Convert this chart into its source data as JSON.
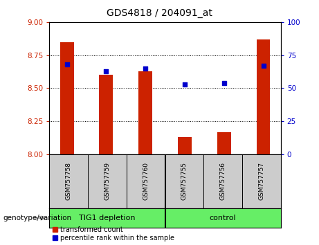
{
  "title": "GDS4818 / 204091_at",
  "samples": [
    "GSM757758",
    "GSM757759",
    "GSM757760",
    "GSM757755",
    "GSM757756",
    "GSM757757"
  ],
  "transformed_count": [
    8.85,
    8.6,
    8.63,
    8.13,
    8.17,
    8.87
  ],
  "percentile_rank": [
    68,
    63,
    65,
    53,
    54,
    67
  ],
  "ylim_left": [
    8.0,
    9.0
  ],
  "ylim_right": [
    0,
    100
  ],
  "yticks_left": [
    8.0,
    8.25,
    8.5,
    8.75,
    9.0
  ],
  "yticks_right": [
    0,
    25,
    50,
    75,
    100
  ],
  "bar_color": "#cc2200",
  "scatter_color": "#0000cc",
  "bar_bottom": 8.0,
  "group1_label": "TIG1 depletion",
  "group2_label": "control",
  "group_label_prefix": "genotype/variation",
  "legend_bar_label": "transformed count",
  "legend_scatter_label": "percentile rank within the sample",
  "sample_area_color": "#cccccc",
  "group_area_color": "#66ee66",
  "plot_bg_color": "#ffffff",
  "title_fontsize": 10,
  "tick_fontsize": 7.5,
  "sample_fontsize": 6.5,
  "group_fontsize": 8,
  "legend_fontsize": 7,
  "genotype_fontsize": 7.5
}
